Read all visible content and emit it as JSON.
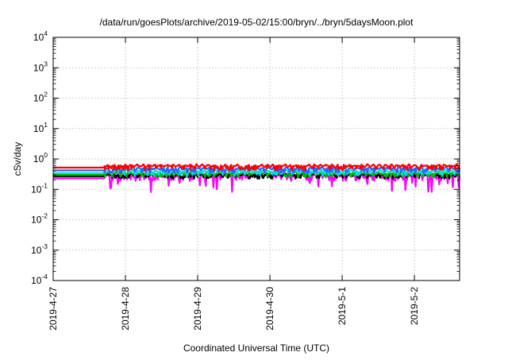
{
  "chart_data": {
    "type": "line",
    "title": "/data/run/goesPlots/archive/2019-05-02/15:00/bryn/../bryn/5daysMoon.plot",
    "xlabel": "Coordinated Universal Time (UTC)",
    "ylabel": "cSv/day",
    "yscale": "log",
    "ylim_exponents": [
      -4,
      4
    ],
    "ytick_labels": [
      {
        "base": "10",
        "exp": "4"
      },
      {
        "base": "10",
        "exp": "3"
      },
      {
        "base": "10",
        "exp": "2"
      },
      {
        "base": "10",
        "exp": "1"
      },
      {
        "base": "10",
        "exp": "0"
      },
      {
        "base": "10",
        "exp": "-1"
      },
      {
        "base": "10",
        "exp": "-2"
      },
      {
        "base": "10",
        "exp": "-3"
      },
      {
        "base": "10",
        "exp": "-4"
      }
    ],
    "xlim": [
      "2019-04-27",
      "2019-05-02 15:00"
    ],
    "xtick_labels": [
      "2019-4-27",
      "2019-4-28",
      "2019-4-29",
      "2019-4-30",
      "2019-5-1",
      "2019-5-2"
    ],
    "grid": true,
    "data_start": "2019-04-27 17:00",
    "series": [
      {
        "color": "#ff00ff",
        "base": 0.23,
        "amp": 0.1,
        "seed": 11,
        "dips": true
      },
      {
        "color": "#000000",
        "base": 0.27,
        "amp": 0.07,
        "seed": 23,
        "dips": false
      },
      {
        "color": "#00bb00",
        "base": 0.3,
        "amp": 0.09,
        "seed": 37,
        "dips": false
      },
      {
        "color": "#00e0e0",
        "base": 0.34,
        "amp": 0.11,
        "seed": 41,
        "dips": false
      },
      {
        "color": "#3060ff",
        "base": 0.42,
        "amp": 0.14,
        "seed": 53,
        "dips": false
      },
      {
        "color": "#ff0000",
        "base": 0.52,
        "amp": 0.16,
        "seed": 67,
        "dips": false
      }
    ]
  }
}
